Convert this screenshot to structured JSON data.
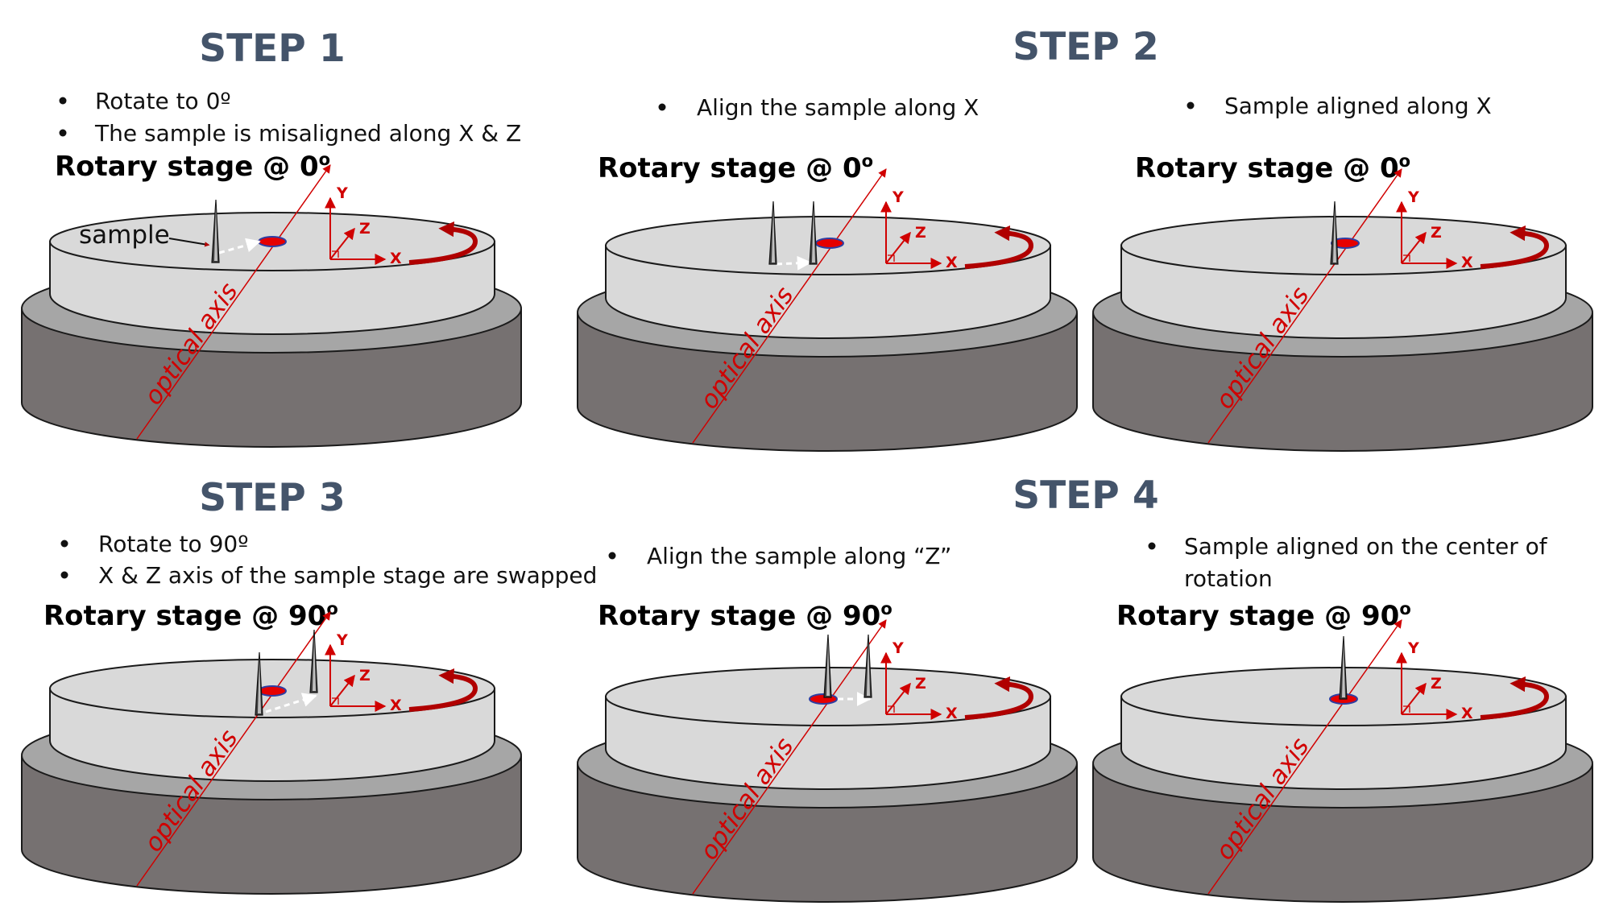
{
  "steps": [
    {
      "title": "STEP 1"
    },
    {
      "title": "STEP 2"
    },
    {
      "title": "STEP 3"
    },
    {
      "title": "STEP 4"
    }
  ],
  "panels": [
    {
      "bullets": [
        "Rotate to 0º",
        "The sample is misaligned along X & Z"
      ],
      "stage_text": "Rotary stage @ 0",
      "stage_sup": "o",
      "sample_label": "sample"
    },
    {
      "bullets": [
        "Align the sample along X"
      ],
      "stage_text": "Rotary stage @ 0",
      "stage_sup": "o"
    },
    {
      "bullets": [
        "Sample aligned along X"
      ],
      "stage_text": "Rotary stage @ 0",
      "stage_sup": "o"
    },
    {
      "bullets": [
        "Rotate to 90º",
        "X & Z axis of the sample stage are swapped"
      ],
      "stage_text": "Rotary stage @ 90",
      "stage_sup": "o"
    },
    {
      "bullets": [
        "Align the sample along “Z”"
      ],
      "stage_text": "Rotary stage @ 90",
      "stage_sup": "o"
    },
    {
      "bullets": [
        "Sample aligned on the center of",
        "rotation"
      ],
      "stage_text": "Rotary stage @ 90",
      "stage_sup": "o"
    }
  ],
  "axes": {
    "x": "X",
    "y": "Y",
    "z": "Z"
  },
  "optical_axis_label": "optical axis",
  "colors": {
    "title": "#44546a",
    "axis_red": "#d00000",
    "rotation_arrow": "#b00000",
    "stage_top": "#d9d9d9",
    "stage_mid": "#a6a6a6",
    "stage_base": "#767171",
    "outline": "#1a1a1a"
  },
  "icons": [
    "sample-needle-icon",
    "rotation-arrow-icon",
    "coordinate-axes-icon",
    "center-of-rotation-marker-icon"
  ]
}
